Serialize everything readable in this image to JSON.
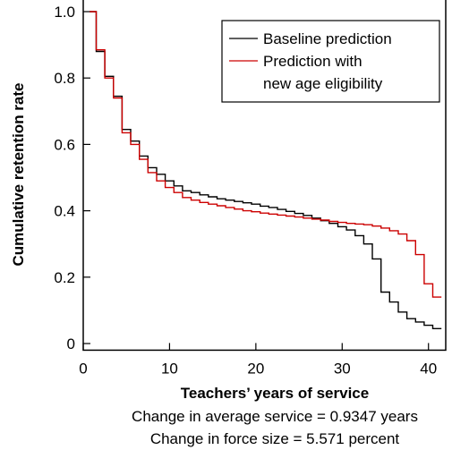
{
  "chart_data": {
    "type": "line",
    "step": true,
    "xlabel": "Teachers’ years of service",
    "ylabel": "Cumulative retention rate",
    "xlim": [
      0,
      42
    ],
    "ylim": [
      0,
      1.0
    ],
    "x_ticks": [
      0,
      10,
      20,
      30,
      40
    ],
    "x_tick_labels": [
      "0",
      "10",
      "20",
      "30",
      "40"
    ],
    "y_ticks": [
      0,
      0.2,
      0.4,
      0.6,
      0.8,
      1.0
    ],
    "y_tick_labels": [
      "0",
      "0.2",
      "0.4",
      "0.6",
      "0.8",
      "1.0"
    ],
    "grid": false,
    "legend_position": "top-right",
    "x": [
      1,
      2,
      3,
      4,
      5,
      6,
      7,
      8,
      9,
      10,
      11,
      12,
      13,
      14,
      15,
      16,
      17,
      18,
      19,
      20,
      21,
      22,
      23,
      24,
      25,
      26,
      27,
      28,
      29,
      30,
      31,
      32,
      33,
      34,
      35,
      36,
      37,
      38,
      39,
      40,
      41
    ],
    "series": [
      {
        "name": "Baseline prediction",
        "color": "#000000",
        "values": [
          1.0,
          0.88,
          0.805,
          0.745,
          0.645,
          0.61,
          0.565,
          0.53,
          0.51,
          0.49,
          0.475,
          0.46,
          0.455,
          0.448,
          0.442,
          0.436,
          0.432,
          0.428,
          0.424,
          0.42,
          0.414,
          0.41,
          0.404,
          0.398,
          0.392,
          0.386,
          0.378,
          0.37,
          0.362,
          0.352,
          0.342,
          0.325,
          0.3,
          0.255,
          0.155,
          0.125,
          0.095,
          0.075,
          0.065,
          0.055,
          0.045
        ]
      },
      {
        "name": "Prediction with new age eligibility",
        "color": "#cc0000",
        "values": [
          1.0,
          0.885,
          0.8,
          0.74,
          0.635,
          0.6,
          0.555,
          0.515,
          0.49,
          0.47,
          0.455,
          0.44,
          0.432,
          0.425,
          0.42,
          0.415,
          0.41,
          0.405,
          0.4,
          0.397,
          0.393,
          0.39,
          0.387,
          0.384,
          0.381,
          0.378,
          0.375,
          0.372,
          0.368,
          0.365,
          0.362,
          0.36,
          0.358,
          0.354,
          0.348,
          0.34,
          0.33,
          0.31,
          0.268,
          0.18,
          0.14
        ]
      }
    ],
    "annotations": [
      "Change in average service = 0.9347 years",
      "Change in force size = 5.571 percent"
    ]
  }
}
